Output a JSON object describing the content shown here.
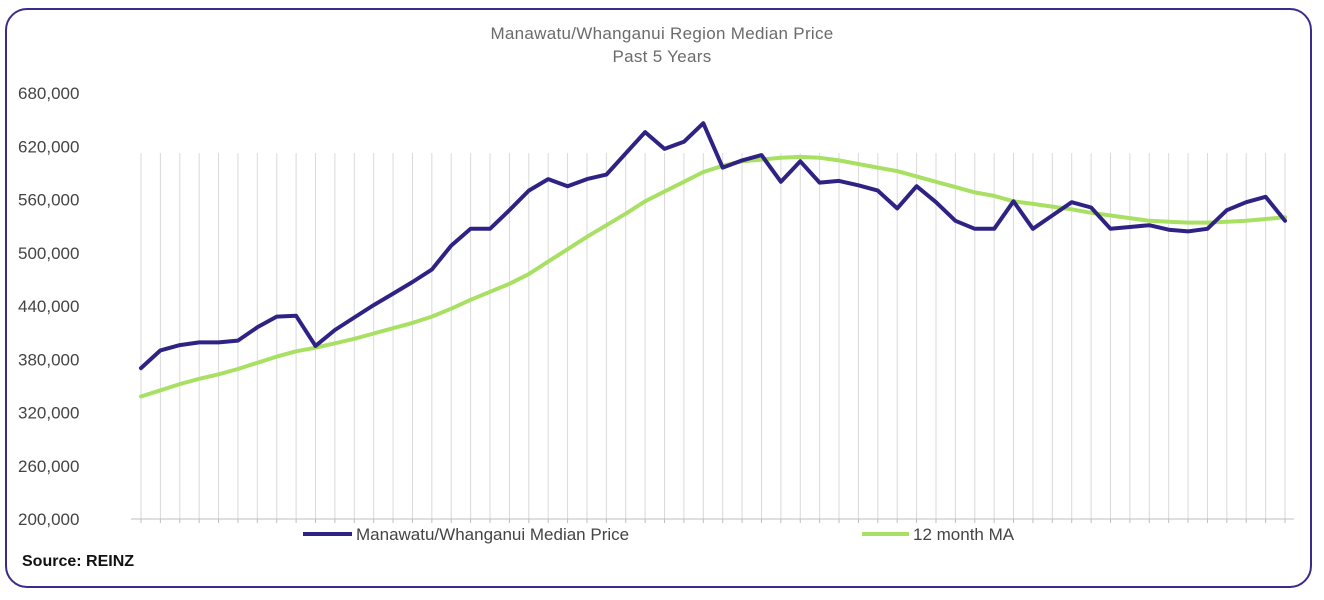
{
  "chart_data": {
    "type": "line",
    "title": "Manawatu/Whanganui Region Median Price",
    "subtitle": "Past 5 Years",
    "xlabel": "",
    "ylabel": "",
    "ylim": [
      200000,
      680000
    ],
    "yticks": [
      "200,000",
      "260,000",
      "320,000",
      "380,000",
      "440,000",
      "500,000",
      "560,000",
      "620,000",
      "680,000"
    ],
    "ytick_values": [
      200000,
      260000,
      320000,
      380000,
      440000,
      500000,
      560000,
      620000,
      680000
    ],
    "grid": "vertical",
    "legend_position": "bottom",
    "series": [
      {
        "name": "Manawatu/Whanganui Median Price",
        "color": "#2e2385",
        "values": [
          370000,
          390000,
          396000,
          399000,
          399000,
          401000,
          416000,
          428000,
          429000,
          395000,
          413000,
          427000,
          441000,
          454000,
          467000,
          481000,
          508000,
          527000,
          527000,
          548000,
          570000,
          583000,
          575000,
          583000,
          588000,
          612000,
          636000,
          617000,
          625000,
          646000,
          596000,
          604000,
          610000,
          580000,
          603000,
          579000,
          581000,
          576000,
          570000,
          550000,
          575000,
          557000,
          536000,
          527000,
          527000,
          558000,
          527000,
          542000,
          557000,
          551000,
          527000,
          529000,
          531000,
          526000,
          524000,
          527000,
          548000,
          557000,
          563000,
          536000
        ]
      },
      {
        "name": "12 month MA",
        "color": "#a8e063",
        "values": [
          338000,
          345000,
          352000,
          358000,
          363000,
          369000,
          376000,
          383000,
          389000,
          393000,
          398000,
          403000,
          409000,
          415000,
          421000,
          428000,
          437000,
          447000,
          456000,
          465000,
          476000,
          490000,
          504000,
          518000,
          531000,
          544000,
          558000,
          569000,
          580000,
          591000,
          598000,
          603000,
          605000,
          607000,
          608000,
          607000,
          604000,
          600000,
          596000,
          592000,
          586000,
          580000,
          574000,
          568000,
          564000,
          558000,
          555000,
          552000,
          549000,
          545000,
          542000,
          539000,
          536000,
          535000,
          534000,
          534000,
          535000,
          536000,
          538000,
          540000
        ]
      }
    ]
  },
  "legend": {
    "item1": "Manawatu/Whanganui Median Price",
    "item2": "12 month MA"
  },
  "source": "Source: REINZ"
}
